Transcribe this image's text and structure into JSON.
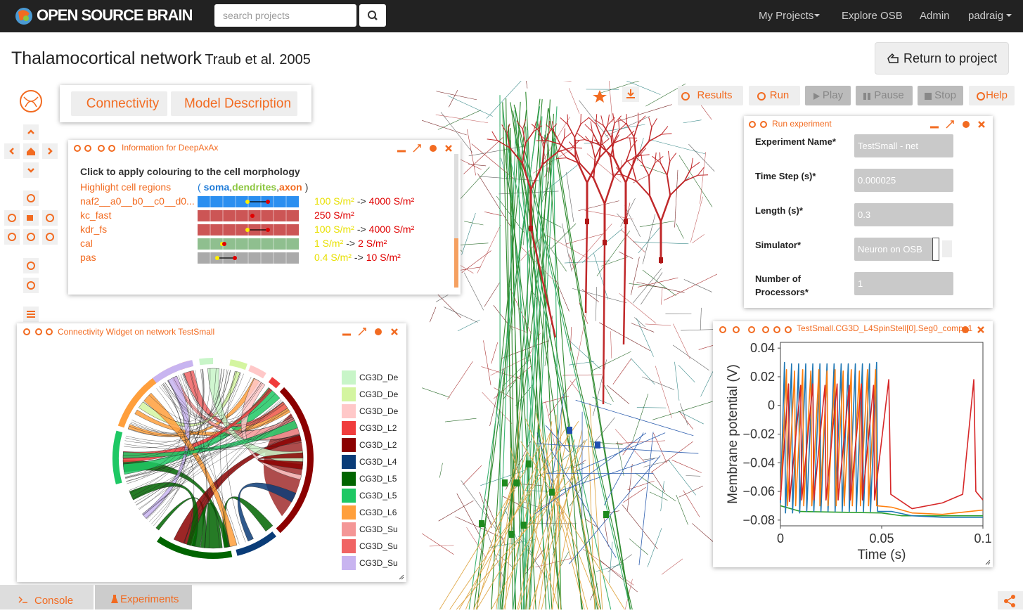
{
  "navbar": {
    "brand": "OPEN SOURCE BRAIN",
    "search_placeholder": "search projects",
    "menu": [
      "My Projects",
      "Explore OSB",
      "Admin",
      "padraig"
    ]
  },
  "header": {
    "title": "Thalamocortical network",
    "subtitle": "Traub et al. 2005",
    "return_button": "Return to project"
  },
  "tabs": [
    "Connectivity",
    "Model Description"
  ],
  "toolbar": [
    "Results",
    "Run",
    "Play",
    "Pause",
    "Stop",
    "Help"
  ],
  "info_panel": {
    "title": "Information for DeepAxAx",
    "heading": "Click to apply colouring to the cell morphology",
    "highlight_label": "Highlight cell regions",
    "regions_open": "(",
    "regions_separator": ",",
    "regions_close": ")",
    "regions": [
      {
        "name": "soma",
        "color": "#1e7bd8"
      },
      {
        "name": "dendrites",
        "color": "#8cc63f"
      },
      {
        "name": "axon",
        "color": "#f26b21"
      }
    ],
    "arrow": "->",
    "rows": [
      {
        "name": "naf2__a0__b0__c0__d0...",
        "color": "#2b8ff0",
        "low": "100 S/m²",
        "high": "4000 S/m²"
      },
      {
        "name": "kc_fast",
        "color": "#cc5555",
        "high": "250 S/m²"
      },
      {
        "name": "kdr_fs",
        "color": "#cc5555",
        "low": "100 S/m²",
        "high": "4000 S/m²"
      },
      {
        "name": "cal",
        "color": "#8fbf8f",
        "low": "1 S/m²",
        "high": "2 S/m²"
      },
      {
        "name": "pas",
        "color": "#aaaaaa",
        "low": "0.4 S/m²",
        "high": "10 S/m²"
      }
    ]
  },
  "run_panel": {
    "title": "Run experiment",
    "fields": [
      {
        "label": "Experiment Name*",
        "value": "TestSmall - net"
      },
      {
        "label": "Time Step (s)*",
        "value": "0.000025"
      },
      {
        "label": "Length (s)*",
        "value": "0.3"
      },
      {
        "label": "Simulator*",
        "value": "Neuron on OSB"
      },
      {
        "label": "Number of Processors*",
        "value": "1"
      }
    ]
  },
  "connectivity_panel": {
    "title": "Connectivity Widget on network TestSmall",
    "legend": [
      {
        "label": "CG3D_De",
        "color": "#c8f5c8"
      },
      {
        "label": "CG3D_De",
        "color": "#d4f5a0"
      },
      {
        "label": "CG3D_De",
        "color": "#ffc8c8"
      },
      {
        "label": "CG3D_L2",
        "color": "#f03c3c"
      },
      {
        "label": "CG3D_L2",
        "color": "#8b0000"
      },
      {
        "label": "CG3D_L4",
        "color": "#0a3c78"
      },
      {
        "label": "CG3D_L5",
        "color": "#006400"
      },
      {
        "label": "CG3D_L5",
        "color": "#1ec864"
      },
      {
        "label": "CG3D_L6",
        "color": "#ff9f3c"
      },
      {
        "label": "CG3D_Su",
        "color": "#f49696"
      },
      {
        "label": "CG3D_Su",
        "color": "#f06464"
      },
      {
        "label": "CG3D_Su",
        "color": "#c8b4f0"
      }
    ]
  },
  "plot_panel": {
    "title": "TestSmall.CG3D_L4SpinStell[0].Seg0_comp_1"
  },
  "bottom_tabs": [
    "Console",
    "Experiments"
  ],
  "chart_data": {
    "type": "line",
    "xlabel": "Time (s)",
    "ylabel": "Membrane potential (V)",
    "xlim": [
      0,
      0.1
    ],
    "ylim": [
      -0.084,
      0.044
    ],
    "xticks": [
      0,
      0.05,
      0.1
    ],
    "yticks": [
      0.04,
      0.02,
      0,
      {
        "value": -0.02,
        "label": "−0.02"
      },
      {
        "value": -0.04,
        "label": "−0.04"
      },
      {
        "value": -0.06,
        "label": "−0.06"
      },
      {
        "value": -0.08,
        "label": "−0.08"
      }
    ],
    "series": [
      {
        "color": "#2ca02c",
        "x": [
          0,
          0.01,
          0.05,
          0.06,
          0.1
        ],
        "values": [
          -0.07,
          -0.074,
          -0.075,
          -0.077,
          -0.077
        ]
      },
      {
        "color": "#1f77b4",
        "x": [
          0,
          0.002,
          0.0025,
          0.0055,
          0.006,
          0.009,
          0.0095,
          0.0125,
          0.013,
          0.016,
          0.0165,
          0.0195,
          0.02,
          0.023,
          0.0235,
          0.0265,
          0.027,
          0.03,
          0.0305,
          0.0335,
          0.034,
          0.037,
          0.0375,
          0.0405,
          0.041,
          0.044,
          0.0445,
          0.0475,
          0.048,
          0.055,
          0.065,
          0.08,
          0.1
        ],
        "values": [
          -0.068,
          0.03,
          -0.075,
          0.029,
          -0.075,
          0.029,
          -0.075,
          0.029,
          -0.074,
          0.029,
          -0.074,
          0.029,
          -0.074,
          0.029,
          -0.074,
          0.029,
          -0.074,
          0.029,
          -0.074,
          0.029,
          -0.074,
          0.029,
          -0.074,
          0.029,
          -0.074,
          0.029,
          -0.074,
          0.03,
          -0.074,
          -0.074,
          -0.077,
          -0.078,
          -0.078
        ]
      },
      {
        "color": "#ff7f0e",
        "x": [
          0,
          0.003,
          0.0035,
          0.007,
          0.0075,
          0.011,
          0.0115,
          0.015,
          0.0155,
          0.019,
          0.0195,
          0.023,
          0.0235,
          0.027,
          0.0275,
          0.031,
          0.0315,
          0.035,
          0.0355,
          0.039,
          0.0395,
          0.043,
          0.0435,
          0.047,
          0.0475,
          0.055,
          0.065,
          0.08,
          0.1
        ],
        "values": [
          -0.066,
          0.025,
          -0.07,
          0.024,
          -0.07,
          0.025,
          -0.07,
          0.024,
          -0.07,
          0.025,
          -0.07,
          0.024,
          -0.07,
          0.025,
          -0.07,
          0.024,
          -0.07,
          0.025,
          -0.07,
          0.024,
          -0.07,
          0.025,
          -0.07,
          0.025,
          -0.07,
          -0.071,
          -0.075,
          -0.076,
          -0.073
        ]
      },
      {
        "color": "#d62728",
        "x": [
          0,
          0.004,
          0.0045,
          0.01,
          0.0105,
          0.016,
          0.0165,
          0.022,
          0.0225,
          0.028,
          0.0285,
          0.034,
          0.0345,
          0.04,
          0.0405,
          0.046,
          0.0465,
          0.0535,
          0.0545,
          0.065,
          0.08,
          0.09,
          0.0955,
          0.0965,
          0.1
        ],
        "values": [
          -0.066,
          0.015,
          -0.067,
          0.014,
          -0.066,
          0.015,
          -0.066,
          0.014,
          -0.066,
          0.015,
          -0.066,
          0.014,
          -0.066,
          0.015,
          -0.066,
          0.014,
          -0.066,
          0.018,
          -0.062,
          -0.072,
          -0.068,
          -0.062,
          0.018,
          -0.06,
          -0.066
        ]
      }
    ]
  }
}
